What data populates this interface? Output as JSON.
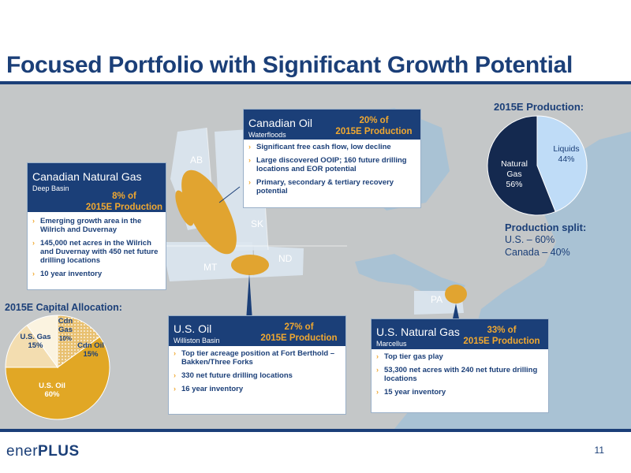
{
  "slide": {
    "title": "Focused Portfolio with Significant Growth Potential",
    "page_number": "11",
    "logo": {
      "part1": "ener",
      "part2": "PLUS"
    }
  },
  "map_labels": {
    "ab": "AB",
    "sk": "SK",
    "mt": "MT",
    "nd": "ND",
    "pa": "PA"
  },
  "callouts": {
    "cad_gas": {
      "name": "Canadian Natural Gas",
      "sub": "Deep Basin",
      "pct_line1": "8% of",
      "pct_line2": "2015E Production",
      "bullets": [
        "Emerging growth area in the Wilrich and Duvernay",
        "145,000 net acres in the Wilrich and Duvernay with 450 net future drilling locations",
        "10 year inventory"
      ]
    },
    "cad_oil": {
      "name": "Canadian Oil",
      "sub": "Waterfloods",
      "pct_line1": "20% of",
      "pct_line2": "2015E Production",
      "bullets": [
        "Significant free cash flow, low decline",
        "Large discovered OOIP; 160 future drilling locations and EOR potential",
        "Primary, secondary & tertiary recovery potential"
      ]
    },
    "us_oil": {
      "name": "U.S. Oil",
      "sub": "Williston Basin",
      "pct_line1": "27% of",
      "pct_line2": "2015E Production",
      "bullets": [
        "Top tier acreage position at Fort Berthold – Bakken/Three Forks",
        "330 net future drilling locations",
        "16 year inventory"
      ]
    },
    "us_gas": {
      "name": "U.S. Natural Gas",
      "sub": "Marcellus",
      "pct_line1": "33% of",
      "pct_line2": "2015E Production",
      "bullets": [
        "Top tier gas play",
        "53,300 net acres with 240 net future drilling locations",
        "15 year inventory"
      ]
    }
  },
  "production": {
    "title": "2015E Production:",
    "slices": [
      {
        "label_l1": "Natural",
        "label_l2": "Gas",
        "value_text": "56%",
        "value": 56,
        "color": "#14294f"
      },
      {
        "label_l1": "Liquids",
        "label_l2": "",
        "value_text": "44%",
        "value": 44,
        "color": "#bfdcf7"
      }
    ],
    "split_title": "Production split:",
    "split_line1": "U.S. – 60%",
    "split_line2": "Canada –  40%"
  },
  "capital": {
    "title": "2015E Capital Allocation:",
    "slices": [
      {
        "label_l1": "U.S. Oil",
        "label_l2": "60%",
        "value": 60,
        "color": "#e1a725"
      },
      {
        "label_l1": "U.S. Gas",
        "label_l2": "15%",
        "value": 15,
        "color": "#f3ddb0"
      },
      {
        "label_l1": "Cdn",
        "label_l2": "Gas",
        "label_l3": "10%",
        "value": 10,
        "color": "#fbf3e0"
      },
      {
        "label_l1": "Cdn Oil",
        "label_l2": "15%",
        "value": 15,
        "color": "#e8c070"
      }
    ]
  },
  "colors": {
    "brand_navy": "#1b3f78",
    "accent_orange": "#f0a830",
    "play_area": "#e1a430",
    "map_land": "#c4c7c8",
    "map_water": "#a9c2d4"
  }
}
